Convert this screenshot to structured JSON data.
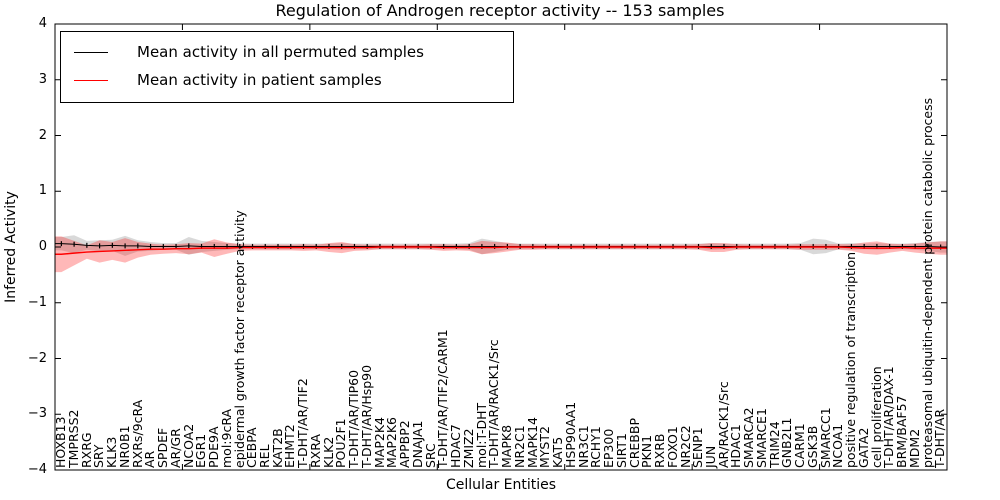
{
  "figure": {
    "title": "Regulation of Androgen receptor activity -- 153 samples",
    "xlabel": "Cellular Entities",
    "ylabel": "Inferred Activity",
    "colors": {
      "permuted_line": "#000000",
      "patient_line": "#ff0000",
      "permuted_band": "#808080",
      "patient_band": "#ff0000"
    }
  },
  "chart_data": {
    "type": "line",
    "title": "Regulation of Androgen receptor activity -- 153 samples",
    "xlabel": "Cellular Entities",
    "ylabel": "Inferred Activity",
    "ylim": [
      -4,
      4
    ],
    "yticks": [
      -4,
      -3,
      -2,
      -1,
      0,
      1,
      2,
      3,
      4
    ],
    "ytick_labels": [
      "−4",
      "−3",
      "−2",
      "−1",
      "0",
      "1",
      "2",
      "3",
      "4"
    ],
    "grid": false,
    "legend_position": "upper left",
    "categories": [
      "HOXB13",
      "TMPRSS2",
      "RXRG",
      "SRY",
      "KLK3",
      "NR0B1",
      "RXRs/9cRA",
      "AR",
      "SPDEF",
      "AR/GR",
      "NCOA2",
      "EGR1",
      "PDE9A",
      "mol:9cRA",
      "epidermal growth factor receptor activity",
      "CEBPA",
      "REL",
      "KAT2B",
      "EHMT2",
      "T-DHT/AR/TIF2",
      "RXRA",
      "KLK2",
      "POU2F1",
      "T-DHT/AR/TIP60",
      "T-DHT/AR/Hsp90",
      "MAP2K4",
      "MAP2K6",
      "APPBP2",
      "DNAJA1",
      "SRC",
      "T-DHT/AR/TIF2/CARM1",
      "HDAC7",
      "ZMIZ2",
      "mol:T-DHT",
      "T-DHT/AR/RACK1/Src",
      "MAPK8",
      "NR2C1",
      "MAPK14",
      "MYST2",
      "KAT5",
      "HSP90AA1",
      "NR3C1",
      "RCHY1",
      "EP300",
      "SIRT1",
      "CREBBP",
      "PKN1",
      "RXRB",
      "FOXO1",
      "NR2C2",
      "SENP1",
      "JUN",
      "AR/RACK1/Src",
      "HDAC1",
      "SMARCA2",
      "SMARCE1",
      "TRIM24",
      "GNB2L1",
      "CARM1",
      "GSK3B",
      "SMARCC1",
      "NCOA1",
      "positive regulation of transcription",
      "GATA2",
      "cell proliferation",
      "T-DHT/AR/DAX-1",
      "BRM/BAF57",
      "MDM2",
      "proteasomal ubiquitin-dependent protein catabolic process",
      "T-DHT/AR"
    ],
    "series": [
      {
        "name": "Mean activity in all permuted samples",
        "color": "#000000",
        "band_color": "#808080",
        "values": [
          0.06,
          0.05,
          0.03,
          0.02,
          0.03,
          0.02,
          0.02,
          0.01,
          0.01,
          0.01,
          0.02,
          0.01,
          0.01,
          0.01,
          0.01,
          0.01,
          0.01,
          0.01,
          0.01,
          0.01,
          0.01,
          0.01,
          0.01,
          0.01,
          0.01,
          0.01,
          0.01,
          0.01,
          0.01,
          0.01,
          0.01,
          0.01,
          0.01,
          0.01,
          0.01,
          0.01,
          0.01,
          0.01,
          0.01,
          0.01,
          0.01,
          0.01,
          0.01,
          0.01,
          0.01,
          0.01,
          0.01,
          0.01,
          0.01,
          0.01,
          0.01,
          0.01,
          0.01,
          0.01,
          0.01,
          0.01,
          0.01,
          0.01,
          0.01,
          0.01,
          0.01,
          0.01,
          0.01,
          0.01,
          0.01,
          0.01,
          0.01,
          0.01,
          0.01,
          0.0
        ],
        "band": [
          0.12,
          0.16,
          0.08,
          0.1,
          0.1,
          0.18,
          0.1,
          0.08,
          0.06,
          0.06,
          0.16,
          0.1,
          0.08,
          0.06,
          0.05,
          0.05,
          0.05,
          0.05,
          0.05,
          0.05,
          0.05,
          0.05,
          0.06,
          0.05,
          0.05,
          0.05,
          0.05,
          0.05,
          0.05,
          0.05,
          0.05,
          0.05,
          0.06,
          0.14,
          0.1,
          0.06,
          0.05,
          0.05,
          0.05,
          0.05,
          0.05,
          0.05,
          0.05,
          0.05,
          0.05,
          0.05,
          0.05,
          0.05,
          0.05,
          0.05,
          0.05,
          0.06,
          0.05,
          0.05,
          0.05,
          0.05,
          0.05,
          0.05,
          0.06,
          0.14,
          0.12,
          0.05,
          0.06,
          0.05,
          0.06,
          0.05,
          0.05,
          0.06,
          0.08,
          0.1
        ]
      },
      {
        "name": "Mean activity in patient samples",
        "color": "#ff0000",
        "band_color": "#ff0000",
        "values": [
          -0.13,
          -0.11,
          -0.09,
          -0.08,
          -0.07,
          -0.06,
          -0.05,
          -0.04,
          -0.04,
          -0.03,
          -0.03,
          -0.02,
          -0.02,
          -0.02,
          -0.01,
          -0.01,
          -0.01,
          -0.01,
          -0.01,
          -0.01,
          -0.01,
          -0.01,
          -0.01,
          -0.01,
          -0.01,
          0,
          0,
          0,
          0,
          0,
          -0.01,
          -0.01,
          -0.01,
          -0.01,
          -0.01,
          0,
          0,
          0,
          0,
          0,
          0,
          0,
          0,
          0,
          0,
          0,
          0,
          0,
          0,
          0,
          0,
          -0.01,
          -0.01,
          0,
          0,
          0,
          0,
          0,
          0,
          0,
          0,
          0,
          -0.01,
          -0.02,
          -0.02,
          -0.02,
          -0.01,
          -0.02,
          -0.02,
          -0.02
        ],
        "band": [
          0.32,
          0.22,
          0.12,
          0.2,
          0.16,
          0.22,
          0.14,
          0.1,
          0.08,
          0.08,
          0.1,
          0.08,
          0.16,
          0.1,
          0.06,
          0.05,
          0.05,
          0.05,
          0.05,
          0.06,
          0.05,
          0.08,
          0.1,
          0.06,
          0.05,
          0.04,
          0.04,
          0.04,
          0.04,
          0.05,
          0.06,
          0.05,
          0.06,
          0.12,
          0.1,
          0.08,
          0.05,
          0.05,
          0.04,
          0.04,
          0.04,
          0.04,
          0.04,
          0.04,
          0.04,
          0.04,
          0.04,
          0.04,
          0.04,
          0.04,
          0.05,
          0.08,
          0.08,
          0.05,
          0.04,
          0.04,
          0.04,
          0.04,
          0.05,
          0.05,
          0.05,
          0.05,
          0.06,
          0.1,
          0.12,
          0.08,
          0.06,
          0.08,
          0.1,
          0.12
        ]
      }
    ]
  }
}
